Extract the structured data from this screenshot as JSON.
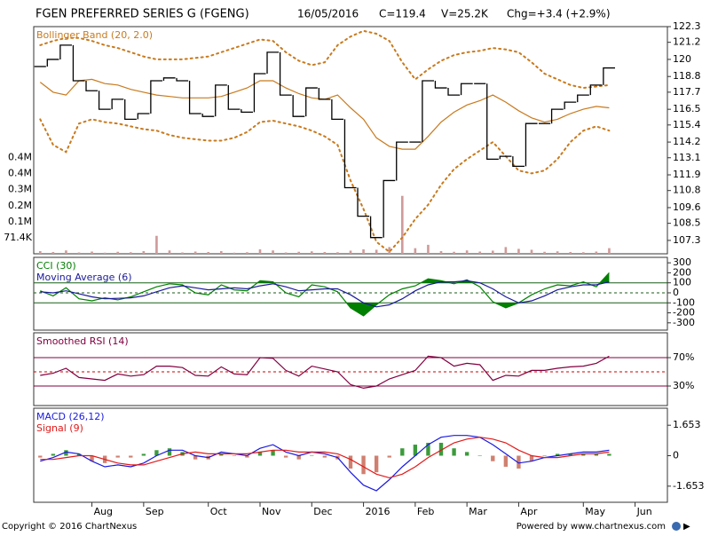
{
  "header": {
    "title": "FGEN PREFERRED SERIES G (FGENG)",
    "date": "16/05/2016",
    "close": "C=119.4",
    "volume": "V=25.2K",
    "change": "Chg=+3.4 (+2.9%)"
  },
  "footer": {
    "copyright": "Copyright © 2016 ChartNexus",
    "powered": "Powered by www.chartnexus.com"
  },
  "chart_data": [
    {
      "type": "line",
      "ylim": [
        106.36,
        122.3
      ],
      "yticks": [
        122.3,
        121.2,
        120,
        118.8,
        117.7,
        116.5,
        115.4,
        114.2,
        113.1,
        111.9,
        110.8,
        109.6,
        108.5,
        107.3
      ],
      "y2lim": [
        0,
        1011500
      ],
      "y2ticks": [
        {
          "value": 71400,
          "label": "71.4K"
        },
        {
          "value": 142800,
          "label": "0.1M"
        },
        {
          "value": 214200,
          "label": "0.2M"
        },
        {
          "value": 285600,
          "label": "0.3M"
        },
        {
          "value": 357000,
          "label": "0.4M"
        },
        {
          "value": 428400,
          "label": "0.4M"
        }
      ],
      "series": [
        {
          "name": "Bollinger Band (20, 2.0)",
          "color": "#c87a1e",
          "type": "line",
          "values": [
            118.4,
            117.7,
            117.5,
            118.5,
            118.6,
            118.3,
            118.2,
            117.9,
            117.7,
            117.5,
            117.4,
            117.3,
            117.3,
            117.3,
            117.4,
            117.7,
            118.0,
            118.5,
            118.5,
            118.0,
            117.6,
            117.3,
            117.2,
            117.5,
            116.6,
            115.8,
            114.5,
            113.9,
            113.7,
            113.7,
            114.6,
            115.6,
            116.3,
            116.8,
            117.1,
            117.5,
            117.0,
            116.4,
            115.9,
            115.6,
            115.8,
            116.2,
            116.5,
            116.7,
            116.6,
            null,
            null,
            null,
            null
          ]
        },
        {
          "color": "#c87a1e",
          "type": "dotted",
          "values": [
            121.0,
            121.3,
            121.5,
            121.5,
            121.3,
            121.0,
            120.8,
            120.5,
            120.2,
            120.0,
            120.0,
            120.0,
            120.1,
            120.2,
            120.5,
            120.8,
            121.1,
            121.4,
            121.3,
            120.5,
            119.9,
            119.6,
            119.8,
            121.0,
            121.6,
            122.0,
            121.8,
            121.3,
            119.8,
            118.6,
            119.3,
            119.9,
            120.3,
            120.5,
            120.6,
            120.8,
            120.7,
            120.5,
            119.8,
            119.0,
            118.6,
            118.2,
            118.0,
            118.1,
            118.2,
            null,
            null,
            null,
            null
          ]
        },
        {
          "color": "#c87a1e",
          "type": "dotted",
          "values": [
            115.8,
            114.0,
            113.5,
            115.5,
            115.8,
            115.6,
            115.5,
            115.3,
            115.1,
            115.0,
            114.7,
            114.5,
            114.4,
            114.3,
            114.3,
            114.5,
            114.9,
            115.6,
            115.7,
            115.5,
            115.3,
            115.0,
            114.6,
            114.0,
            111.5,
            109.5,
            107.2,
            106.5,
            107.5,
            108.8,
            109.8,
            111.2,
            112.3,
            113.0,
            113.6,
            114.2,
            113.2,
            112.2,
            112.0,
            112.2,
            113.0,
            114.2,
            115.0,
            115.3,
            115.0,
            null,
            null,
            null,
            null
          ]
        },
        {
          "color": "#000000",
          "type": "step",
          "values": [
            119.5,
            120.0,
            121.0,
            118.5,
            117.8,
            116.5,
            117.2,
            115.8,
            116.2,
            118.5,
            118.7,
            118.5,
            116.2,
            116.0,
            118.2,
            116.5,
            116.3,
            119.0,
            120.5,
            117.5,
            116.0,
            118.0,
            117.2,
            115.8,
            111.0,
            109.0,
            107.5,
            111.5,
            114.2,
            114.2,
            118.5,
            118.0,
            117.5,
            118.3,
            118.3,
            113.0,
            113.2,
            112.5,
            115.5,
            115.5,
            116.5,
            117.0,
            117.5,
            118.2,
            119.4,
            null,
            null,
            null,
            null
          ]
        },
        {
          "color": "#d09a9a",
          "type": "bar",
          "axis": "y2",
          "values": [
            12000,
            8000,
            15000,
            6000,
            10000,
            5000,
            9000,
            7000,
            12000,
            80000,
            15000,
            6000,
            10000,
            8000,
            12000,
            5000,
            7000,
            20000,
            15000,
            6000,
            9000,
            11000,
            8000,
            7000,
            14000,
            20000,
            18000,
            30000,
            258000,
            25000,
            40000,
            12000,
            9000,
            15000,
            10000,
            14000,
            30000,
            22000,
            18000,
            9000,
            11000,
            8000,
            7000,
            10000,
            25200,
            null,
            null,
            null,
            null
          ]
        }
      ]
    },
    {
      "type": "line",
      "ylim": [
        -372.7,
        354.5
      ],
      "yticks": [
        300,
        200,
        100,
        0,
        -100,
        -200,
        -300
      ],
      "levels": [
        100,
        -100
      ],
      "midline": 0,
      "level_color": "#1a5a1a",
      "series": [
        {
          "name": "CCI (30)",
          "color": "#008000",
          "type": "line",
          "fill_beyond_levels": true,
          "values": [
            20,
            -30,
            50,
            -60,
            -80,
            -50,
            -70,
            -40,
            10,
            60,
            90,
            80,
            0,
            -20,
            80,
            30,
            20,
            120,
            110,
            0,
            -40,
            80,
            60,
            10,
            -150,
            -230,
            -120,
            -20,
            40,
            70,
            140,
            120,
            90,
            130,
            60,
            -90,
            -150,
            -100,
            -20,
            40,
            80,
            70,
            110,
            60,
            200,
            null,
            null,
            null,
            null
          ]
        },
        {
          "name": "Moving Average (6)",
          "color": "#1a1a9a",
          "type": "line",
          "values": [
            10,
            0,
            20,
            -10,
            -40,
            -60,
            -55,
            -50,
            -30,
            10,
            50,
            70,
            50,
            30,
            40,
            50,
            40,
            70,
            90,
            60,
            20,
            30,
            40,
            40,
            -20,
            -100,
            -140,
            -120,
            -60,
            20,
            80,
            110,
            110,
            120,
            100,
            40,
            -40,
            -100,
            -80,
            -30,
            30,
            60,
            80,
            80,
            110,
            null,
            null,
            null,
            null
          ]
        }
      ]
    },
    {
      "type": "line",
      "ylim": [
        2.5,
        105
      ],
      "yticks": [
        {
          "value": 70,
          "label": "70%"
        },
        {
          "value": 30,
          "label": "30%"
        }
      ],
      "levels": [
        70,
        30
      ],
      "midline": 50,
      "level_color": "#800040",
      "midline_color": "#cc0000",
      "series": [
        {
          "name": "Smoothed RSI (14)",
          "color": "#800040",
          "type": "line",
          "values": [
            45,
            48,
            55,
            42,
            40,
            38,
            47,
            44,
            46,
            58,
            58,
            56,
            45,
            44,
            57,
            47,
            46,
            70,
            69,
            52,
            44,
            58,
            54,
            50,
            32,
            27,
            30,
            40,
            46,
            52,
            72,
            70,
            58,
            62,
            60,
            38,
            45,
            44,
            52,
            52,
            55,
            57,
            58,
            62,
            72,
            null,
            null,
            null,
            null
          ]
        }
      ]
    },
    {
      "type": "line",
      "ylim": [
        -2.528,
        2.577
      ],
      "yticks": [
        1.653,
        0,
        -1.653
      ],
      "categories": [
        null,
        null,
        null,
        null,
        "Aug",
        null,
        null,
        null,
        "Sep",
        null,
        null,
        null,
        null,
        "Oct",
        null,
        null,
        null,
        "Nov",
        null,
        null,
        null,
        "Dec",
        null,
        null,
        null,
        "2016",
        null,
        null,
        null,
        "Feb",
        null,
        null,
        null,
        "Mar",
        null,
        null,
        null,
        "Apr",
        null,
        null,
        null,
        null,
        "May",
        null,
        null,
        null,
        "Jun",
        null,
        null
      ],
      "series": [
        {
          "color": "#3c9a3c",
          "negative_color": "#d08070",
          "type": "bar",
          "values": [
            -0.1,
            0.1,
            0.3,
            0.1,
            -0.3,
            -0.4,
            -0.1,
            -0.1,
            0.1,
            0.3,
            0.4,
            0.2,
            -0.2,
            -0.2,
            0.1,
            0.0,
            -0.1,
            0.2,
            0.3,
            -0.1,
            -0.2,
            0.0,
            -0.1,
            -0.2,
            -0.7,
            -1.0,
            -0.9,
            -0.1,
            0.4,
            0.6,
            0.7,
            0.7,
            0.4,
            0.2,
            0.0,
            -0.3,
            -0.6,
            -0.7,
            -0.3,
            0.0,
            0.1,
            0.1,
            0.1,
            0.1,
            0.1,
            null,
            null,
            null,
            null
          ]
        },
        {
          "name": "MACD (26,12)",
          "color": "#1a1ae0",
          "type": "line",
          "values": [
            -0.3,
            -0.1,
            0.2,
            0.1,
            -0.3,
            -0.6,
            -0.5,
            -0.6,
            -0.4,
            0.0,
            0.3,
            0.3,
            0.0,
            -0.1,
            0.2,
            0.1,
            0.0,
            0.4,
            0.6,
            0.2,
            0.0,
            0.2,
            0.1,
            -0.1,
            -0.9,
            -1.6,
            -1.9,
            -1.3,
            -0.6,
            0.0,
            0.6,
            1.0,
            1.1,
            1.1,
            1.0,
            0.6,
            0.1,
            -0.4,
            -0.3,
            -0.1,
            0.0,
            0.1,
            0.2,
            0.2,
            0.3,
            null,
            null,
            null,
            null
          ]
        },
        {
          "name": "Signal (9)",
          "color": "#e01a1a",
          "type": "line",
          "values": [
            -0.2,
            -0.2,
            -0.1,
            0.0,
            0.0,
            -0.2,
            -0.4,
            -0.5,
            -0.5,
            -0.3,
            -0.1,
            0.1,
            0.2,
            0.1,
            0.1,
            0.1,
            0.1,
            0.2,
            0.3,
            0.3,
            0.2,
            0.2,
            0.2,
            0.1,
            -0.2,
            -0.6,
            -1.0,
            -1.2,
            -1.0,
            -0.6,
            -0.1,
            0.3,
            0.7,
            0.9,
            1.0,
            0.9,
            0.7,
            0.3,
            0.0,
            -0.1,
            -0.1,
            0.0,
            0.1,
            0.1,
            0.2,
            null,
            null,
            null,
            null
          ]
        }
      ]
    }
  ]
}
